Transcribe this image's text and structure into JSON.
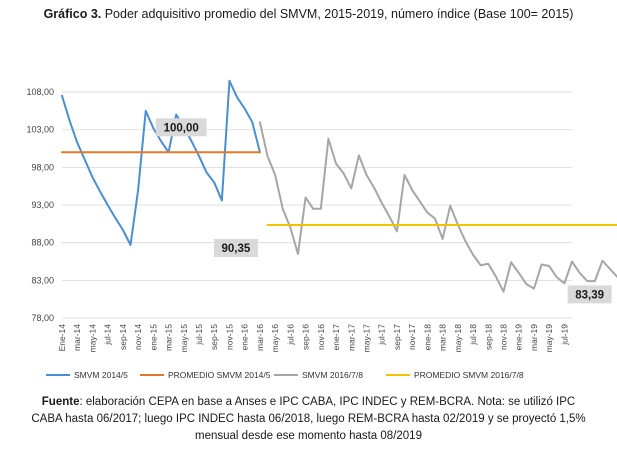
{
  "title": {
    "bold": "Gráfico 3.",
    "text": " Poder adquisitivo promedio del SMVM, 2015-2019, número índice (Base 100= 2015)"
  },
  "source": {
    "bold": "Fuente",
    "text": ": elaboración CEPA en base a Anses e IPC CABA, IPC INDEC y REM-BCRA. Nota: se utilizó IPC CABA hasta 06/2017; luego IPC INDEC hasta 06/2018, luego REM-BCRA hasta 02/2019 y se proyectó 1,5% mensual desde ese momento hasta 08/2019"
  },
  "chart_data": {
    "type": "line",
    "ylim": [
      78,
      110
    ],
    "yticks": [
      "108,00",
      "103,00",
      "98,00",
      "93,00",
      "88,00",
      "83,00",
      "78,00"
    ],
    "ytick_values": [
      108,
      103,
      98,
      93,
      88,
      83,
      78
    ],
    "x_tick_labels": [
      "Ene-14",
      "mar-14",
      "may-14",
      "jul-14",
      "sep-14",
      "nov-14",
      "ene-15",
      "mar-15",
      "may-15",
      "jul-15",
      "sep-15",
      "nov-15",
      "ene-16",
      "mar-16",
      "may-16",
      "jul-16",
      "sep-16",
      "nov-16",
      "ene-17",
      "mar-17",
      "may-17",
      "jul-17",
      "sep-17",
      "nov-17",
      "ene-18",
      "mar-18",
      "may-18",
      "jul-18",
      "sep-18",
      "nov-18",
      "ene-19",
      "mar-19",
      "may-19",
      "jul-19"
    ],
    "grid": true,
    "legend_position": "bottom",
    "series": [
      {
        "name": "SMVM 2014/5",
        "color": "#4a8fcf",
        "start_index": 0,
        "values": [
          107.5,
          104.2,
          101.3,
          99,
          96.7,
          94.8,
          93.0,
          91.3,
          89.7,
          87.7,
          95.0,
          105.5,
          103.2,
          101.5,
          100.0,
          105.0,
          103.4,
          101.5,
          99.5,
          97.3,
          96.0,
          93.6,
          109.5,
          107.3,
          105.8,
          104.0,
          100.0
        ]
      },
      {
        "name": "PROMEDIO SMVM 2014/5",
        "color": "#e07b2c",
        "start_index": 0,
        "values": [
          100.0,
          100.0,
          100.0,
          100.0,
          100.0,
          100.0,
          100.0,
          100.0,
          100.0,
          100.0,
          100.0,
          100.0,
          100.0,
          100.0,
          100.0,
          100.0,
          100.0,
          100.0,
          100.0,
          100.0,
          100.0,
          100.0,
          100.0,
          100.0,
          100.0,
          100.0,
          100.0
        ]
      },
      {
        "name": "SMVM 2016/7/8",
        "color": "#a6a6a6",
        "start_index": 26,
        "values": [
          104.0,
          99.5,
          97.0,
          92.5,
          90.0,
          86.5,
          94.0,
          92.5,
          92.5,
          101.8,
          98.5,
          97.2,
          95.2,
          99.6,
          97.0,
          95.3,
          93.3,
          91.5,
          89.5,
          97.0,
          95.0,
          93.5,
          92.0,
          91.2,
          88.5,
          92.9,
          90.4,
          88.2,
          86.4,
          85.0,
          85.2,
          83.5,
          81.5,
          85.4,
          84.0,
          82.5,
          81.9,
          85.1,
          84.9,
          83.4,
          82.6,
          85.5,
          84.0,
          82.9,
          82.9,
          85.6,
          84.5,
          83.4
        ]
      },
      {
        "name": "PROMEDIO SMVM 2016/7/8",
        "color": "#f2c200",
        "start_index": 27,
        "values": [
          90.35,
          90.35,
          90.35,
          90.35,
          90.35,
          90.35,
          90.35,
          90.35,
          90.35,
          90.35,
          90.35,
          90.35,
          90.35,
          90.35,
          90.35,
          90.35,
          90.35,
          90.35,
          90.35,
          90.35,
          90.35,
          90.35,
          90.35,
          90.35,
          90.35,
          90.35,
          90.35,
          90.35,
          90.35,
          90.35,
          90.35,
          90.35,
          90.35,
          90.35,
          90.35,
          90.35,
          90.35,
          90.35,
          90.35,
          90.35,
          90.35,
          90.35,
          90.35,
          90.35,
          90.35,
          90.35,
          90.35
        ]
      }
    ],
    "annotations": [
      {
        "label": "100,00",
        "at_index": 15,
        "value": 100.0
      },
      {
        "label": "90,35",
        "at_index": 26,
        "value": 90.35
      },
      {
        "label": "83,39",
        "at_index": 73,
        "value": 83.39
      }
    ]
  }
}
